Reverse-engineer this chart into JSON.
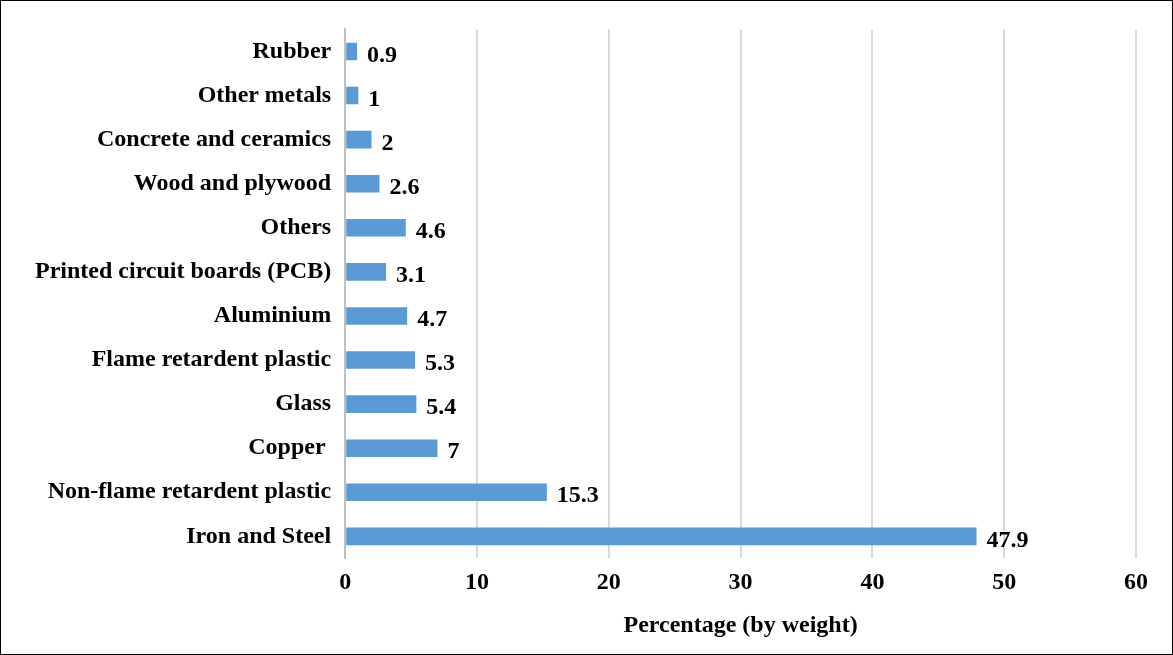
{
  "chart_data": {
    "type": "bar",
    "orientation": "horizontal",
    "xlabel": "Percentage (by weight)",
    "categories": [
      "Rubber",
      "Other metals",
      "Concrete and ceramics",
      "Wood and plywood",
      "Others",
      "Printed circuit boards (PCB)",
      "Aluminium",
      "Flame retardent plastic",
      "Glass",
      "Copper ",
      "Non-flame retardent plastic",
      "Iron and Steel"
    ],
    "values": [
      0.9,
      1,
      2,
      2.6,
      4.6,
      3.1,
      4.7,
      5.3,
      5.4,
      7,
      15.3,
      47.9
    ],
    "color": "#5b9bd5",
    "xlim": [
      0,
      60
    ],
    "xticks": [
      0,
      10,
      20,
      30,
      40,
      50,
      60
    ],
    "grid": "x",
    "data_labels": true,
    "legend": false
  }
}
